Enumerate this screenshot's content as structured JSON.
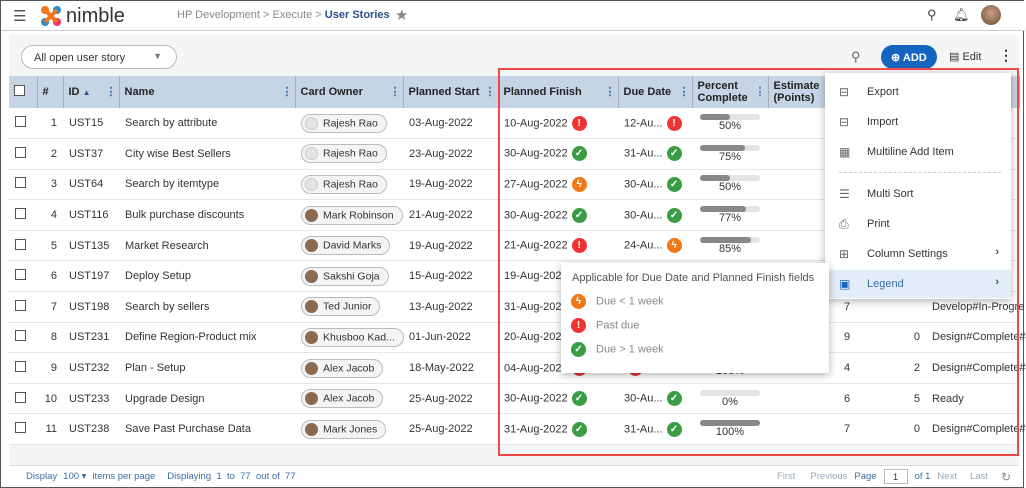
{
  "header": {
    "logo": "nimble",
    "breadcrumb": [
      "HP Development",
      "Execute",
      "User Stories"
    ]
  },
  "toolbar": {
    "view": "All open user story",
    "add_label": "ADD",
    "edit_label": "Edit"
  },
  "columns": [
    "#",
    "ID",
    "Name",
    "Card Owner",
    "Planned Start",
    "Planned Finish",
    "Due Date",
    "Percent Complete",
    "Estimate (Points)"
  ],
  "rows": [
    {
      "n": "1",
      "id": "UST15",
      "name": "Search by attribute",
      "owner": "Rajesh Rao",
      "start": "03-Aug-2022",
      "finish": "10-Aug-2022",
      "finish_status": "past",
      "due": "12-Au...",
      "due_status": "past",
      "pct": 50,
      "pct_label": "50%",
      "est": "",
      "col2": "",
      "status": ""
    },
    {
      "n": "2",
      "id": "UST37",
      "name": "City wise Best Sellers",
      "owner": "Rajesh Rao",
      "start": "23-Aug-2022",
      "finish": "30-Aug-2022",
      "finish_status": "ok",
      "due": "31-Au...",
      "due_status": "ok",
      "pct": 75,
      "pct_label": "75%",
      "est": "",
      "col2": "",
      "status": ""
    },
    {
      "n": "3",
      "id": "UST64",
      "name": "Search by itemtype",
      "owner": "Rajesh Rao",
      "start": "19-Aug-2022",
      "finish": "27-Aug-2022",
      "finish_status": "soon",
      "due": "30-Au...",
      "due_status": "ok",
      "pct": 50,
      "pct_label": "50%",
      "est": "",
      "col2": "",
      "status": ""
    },
    {
      "n": "4",
      "id": "UST116",
      "name": "Bulk purchase discounts",
      "owner": "Mark Robinson",
      "start": "21-Aug-2022",
      "finish": "30-Aug-2022",
      "finish_status": "ok",
      "due": "30-Au...",
      "due_status": "ok",
      "pct": 77,
      "pct_label": "77%",
      "est": "",
      "col2": "",
      "status": ""
    },
    {
      "n": "5",
      "id": "UST135",
      "name": "Market Research",
      "owner": "David Marks",
      "start": "19-Aug-2022",
      "finish": "21-Aug-2022",
      "finish_status": "past",
      "due": "24-Au...",
      "due_status": "soon",
      "pct": 85,
      "pct_label": "85%",
      "est": "",
      "col2": "",
      "status": ""
    },
    {
      "n": "6",
      "id": "UST197",
      "name": "Deploy Setup",
      "owner": "Sakshi Goja",
      "start": "15-Aug-2022",
      "finish": "19-Aug-2022",
      "finish_status": "",
      "due": "",
      "due_status": "",
      "pct": null,
      "pct_label": "",
      "est": "",
      "col2": "",
      "status": ""
    },
    {
      "n": "7",
      "id": "UST198",
      "name": "Search by sellers",
      "owner": "Ted Junior",
      "start": "13-Aug-2022",
      "finish": "31-Aug-2022",
      "finish_status": "",
      "due": "",
      "due_status": "",
      "pct": null,
      "pct_label": "",
      "est": "7",
      "col2": "",
      "status": "Develop#In-Progre"
    },
    {
      "n": "8",
      "id": "UST231",
      "name": "Define Region-Product mix",
      "owner": "Khusboo Kad...",
      "start": "01-Jun-2022",
      "finish": "20-Aug-2022",
      "finish_status": "",
      "due": "",
      "due_status": "",
      "pct": null,
      "pct_label": "",
      "est": "9",
      "col2": "0",
      "status": "Design#Complete#"
    },
    {
      "n": "9",
      "id": "UST232",
      "name": "Plan - Setup",
      "owner": "Alex Jacob",
      "start": "18-May-2022",
      "finish": "04-Aug-2022",
      "finish_status": "past",
      "due": "",
      "due_status": "past",
      "pct": 100,
      "pct_label": "100%",
      "est": "4",
      "col2": "2",
      "status": "Design#Complete#"
    },
    {
      "n": "10",
      "id": "UST233",
      "name": "Upgrade Design",
      "owner": "Alex Jacob",
      "start": "25-Aug-2022",
      "finish": "30-Aug-2022",
      "finish_status": "ok",
      "due": "30-Au...",
      "due_status": "ok",
      "pct": 0,
      "pct_label": "0%",
      "est": "6",
      "col2": "5",
      "status": "Ready"
    },
    {
      "n": "11",
      "id": "UST238",
      "name": "Save Past Purchase Data",
      "owner": "Mark Jones",
      "start": "25-Aug-2022",
      "finish": "31-Aug-2022",
      "finish_status": "ok",
      "due": "31-Au...",
      "due_status": "ok",
      "pct": 100,
      "pct_label": "100%",
      "est": "7",
      "col2": "0",
      "status": "Design#Complete#"
    }
  ],
  "menu": [
    {
      "label": "Export",
      "icon": "export-icon"
    },
    {
      "label": "Import",
      "icon": "import-icon"
    },
    {
      "label": "Multiline Add Item",
      "icon": "multiline-add-icon"
    },
    {
      "label": "Multi Sort",
      "icon": "multi-sort-icon"
    },
    {
      "label": "Print",
      "icon": "print-icon"
    },
    {
      "label": "Column Settings",
      "icon": "column-settings-icon",
      "submenu": true
    },
    {
      "label": "Legend",
      "icon": "legend-icon",
      "submenu": true,
      "active": true
    }
  ],
  "legend": {
    "title": "Applicable for Due Date and Planned Finish fields",
    "items": [
      {
        "status": "soon",
        "label": "Due < 1 week"
      },
      {
        "status": "past",
        "label": "Past due"
      },
      {
        "status": "ok",
        "label": "Due > 1 week"
      }
    ]
  },
  "footer": {
    "display": "Display",
    "per_page": "100",
    "items_per_page": "items per page",
    "displaying": "Displaying  1  to  77  out of  77",
    "first": "First",
    "previous": "Previous",
    "page": "Page",
    "page_value": "1",
    "of": "of 1",
    "next": "Next",
    "last": "Last"
  },
  "colors": {
    "accent": "#1565c0",
    "ok": "#3a9c45",
    "past": "#ee3333",
    "soon": "#f07818",
    "highlight": "#f04848"
  }
}
